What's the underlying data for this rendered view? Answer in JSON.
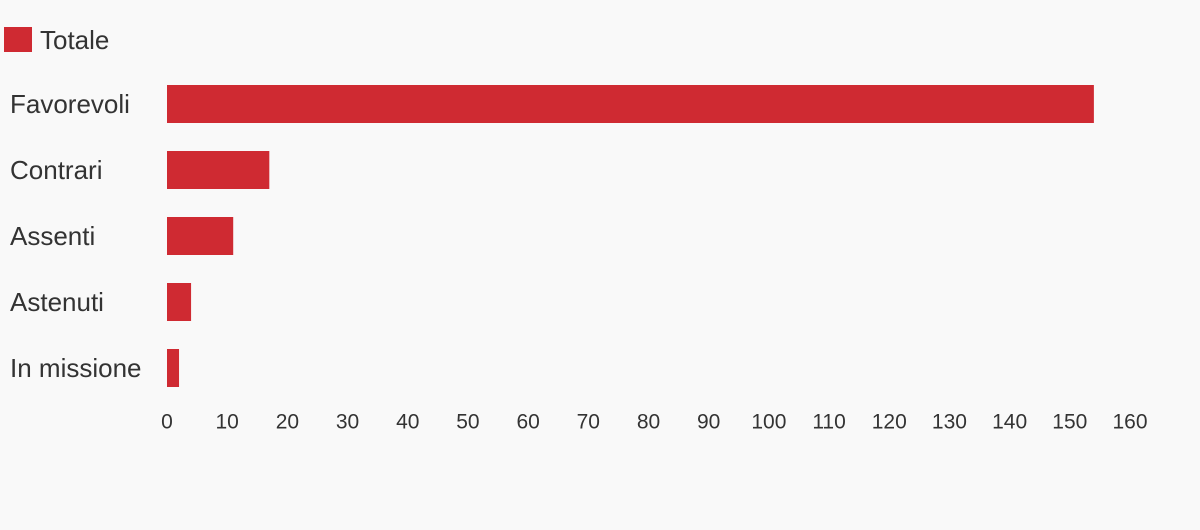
{
  "chart_data": {
    "type": "bar",
    "orientation": "horizontal",
    "categories": [
      "Favorevoli",
      "Contrari",
      "Assenti",
      "Astenuti",
      "In missione"
    ],
    "series": [
      {
        "name": "Totale",
        "color": "#cf2a32",
        "values": [
          154,
          17,
          11,
          4,
          2
        ]
      }
    ],
    "xlim": [
      0,
      160
    ],
    "xticks": [
      0,
      10,
      20,
      30,
      40,
      50,
      60,
      70,
      80,
      90,
      100,
      110,
      120,
      130,
      140,
      150,
      160
    ],
    "grid": false,
    "legend": "top-left"
  }
}
